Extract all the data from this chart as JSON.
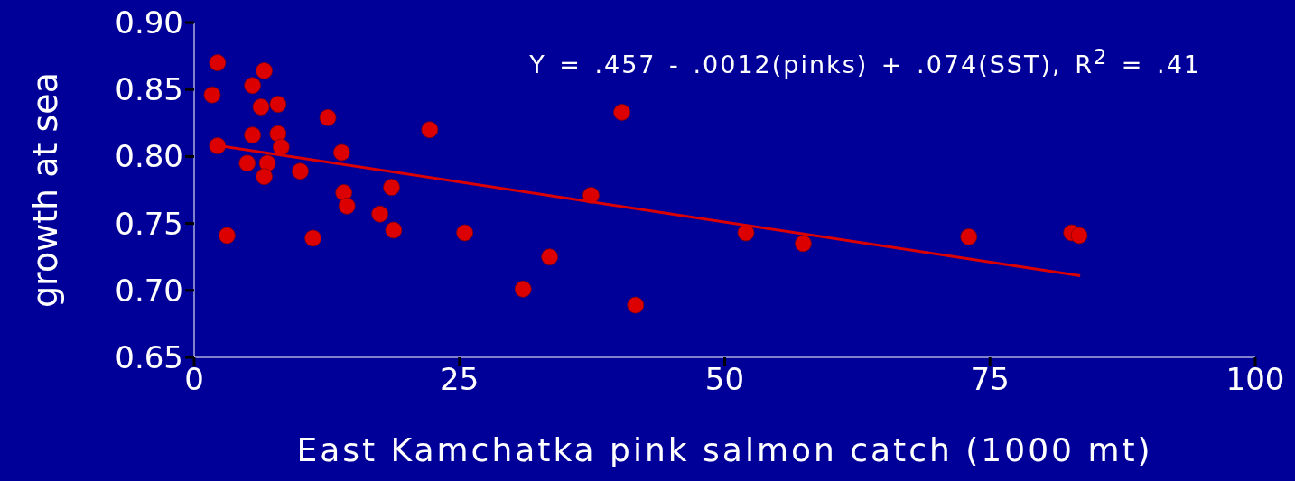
{
  "chart_data": {
    "type": "scatter",
    "xlabel": "East Kamchatka pink salmon catch (1000 mt)",
    "ylabel": "growth at sea",
    "annotations": [
      "Y = .457 - .0012(pinks) + .074(SST), R$^{2}$ = .41"
    ],
    "xlim": [
      0,
      100
    ],
    "xticks": [
      0,
      25,
      50,
      75,
      100
    ],
    "ylim": [
      0.65,
      0.9
    ],
    "yticks": [
      {
        "value": 0.65,
        "label": "0.65"
      },
      {
        "value": 0.7,
        "label": "0.70"
      },
      {
        "value": 0.75,
        "label": "0.75"
      },
      {
        "value": 0.8,
        "label": "0.80"
      },
      {
        "value": 0.85,
        "label": "0.85"
      },
      {
        "value": 0.9,
        "label": "0.90"
      }
    ],
    "marker": "circle",
    "series": [
      {
        "color": "#dd0000",
        "x": [
          1.7,
          2.2,
          2.2,
          3.1,
          5.5,
          5.5,
          5.0,
          6.6,
          6.3,
          7.9,
          7.9,
          8.2,
          6.9,
          6.6,
          10.0,
          11.2,
          12.6,
          13.9,
          14.1,
          14.4,
          17.5,
          18.6,
          18.8,
          22.2,
          25.5,
          31.0,
          33.5,
          37.4,
          40.3,
          41.6,
          52.0,
          57.4,
          73.0,
          82.7,
          83.4
        ],
        "values": [
          0.846,
          0.87,
          0.808,
          0.741,
          0.853,
          0.816,
          0.795,
          0.864,
          0.837,
          0.839,
          0.817,
          0.807,
          0.795,
          0.785,
          0.789,
          0.739,
          0.829,
          0.803,
          0.773,
          0.763,
          0.757,
          0.777,
          0.745,
          0.82,
          0.743,
          0.701,
          0.725,
          0.771,
          0.833,
          0.689,
          0.743,
          0.735,
          0.74,
          0.743,
          0.741
        ]
      },
      {
        "type": "line",
        "marker": "none",
        "color": "#dd0000",
        "x": [
          2.4,
          83.5
        ],
        "values": [
          0.808,
          0.711
        ]
      }
    ]
  }
}
